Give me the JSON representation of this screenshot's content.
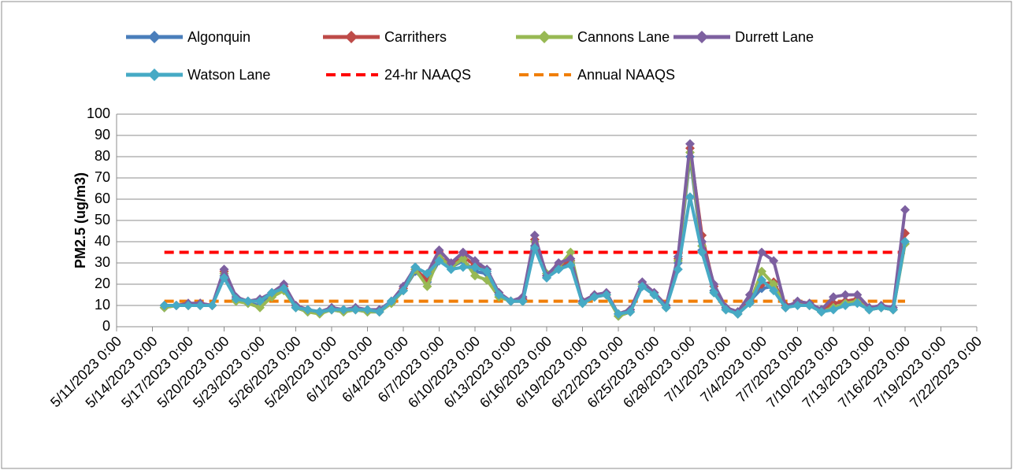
{
  "chart_data": {
    "type": "line",
    "y_label": "PM2.5 (ug/m3)",
    "x": [
      "5/15/2023 0:00",
      "5/16/2023 0:00",
      "5/17/2023 0:00",
      "5/18/2023 0:00",
      "5/19/2023 0:00",
      "5/20/2023 0:00",
      "5/21/2023 0:00",
      "5/22/2023 0:00",
      "5/23/2023 0:00",
      "5/24/2023 0:00",
      "5/25/2023 0:00",
      "5/26/2023 0:00",
      "5/27/2023 0:00",
      "5/28/2023 0:00",
      "5/29/2023 0:00",
      "5/30/2023 0:00",
      "5/31/2023 0:00",
      "6/1/2023 0:00",
      "6/2/2023 0:00",
      "6/3/2023 0:00",
      "6/4/2023 0:00",
      "6/5/2023 0:00",
      "6/6/2023 0:00",
      "6/7/2023 0:00",
      "6/8/2023 0:00",
      "6/9/2023 0:00",
      "6/10/2023 0:00",
      "6/11/2023 0:00",
      "6/12/2023 0:00",
      "6/13/2023 0:00",
      "6/14/2023 0:00",
      "6/15/2023 0:00",
      "6/16/2023 0:00",
      "6/17/2023 0:00",
      "6/18/2023 0:00",
      "6/19/2023 0:00",
      "6/20/2023 0:00",
      "6/21/2023 0:00",
      "6/22/2023 0:00",
      "6/23/2023 0:00",
      "6/24/2023 0:00",
      "6/25/2023 0:00",
      "6/26/2023 0:00",
      "6/27/2023 0:00",
      "6/28/2023 0:00",
      "6/29/2023 0:00",
      "6/30/2023 0:00",
      "7/1/2023 0:00",
      "7/2/2023 0:00",
      "7/3/2023 0:00",
      "7/4/2023 0:00",
      "7/5/2023 0:00",
      "7/6/2023 0:00",
      "7/7/2023 0:00",
      "7/8/2023 0:00",
      "7/9/2023 0:00",
      "7/10/2023 0:00",
      "7/11/2023 0:00",
      "7/12/2023 0:00",
      "7/13/2023 0:00",
      "7/14/2023 0:00",
      "7/15/2023 0:00",
      "7/16/2023 0:00"
    ],
    "series": [
      {
        "name": "Algonquin",
        "color": "#4a7ebb",
        "values": [
          9,
          10,
          10,
          10,
          10,
          24,
          13,
          11,
          10,
          15,
          18,
          9,
          7,
          7,
          8,
          7,
          8,
          7,
          7,
          11,
          17,
          26,
          21,
          31,
          28,
          31,
          26,
          25,
          15,
          12,
          12,
          38,
          23,
          27,
          30,
          11,
          14,
          15,
          5,
          7,
          19,
          15,
          9,
          30,
          80,
          36,
          17,
          8,
          6,
          12,
          18,
          19,
          9,
          11,
          10,
          7,
          9,
          11,
          12,
          8,
          9,
          8,
          40
        ]
      },
      {
        "name": "Carrithers",
        "color": "#be4b48",
        "values": [
          10,
          10,
          10,
          11,
          10,
          26,
          13,
          12,
          12,
          16,
          19,
          10,
          8,
          7,
          8,
          8,
          8,
          8,
          7,
          12,
          18,
          27,
          22,
          33,
          29,
          33,
          29,
          26,
          16,
          12,
          13,
          41,
          24,
          29,
          31,
          12,
          15,
          15,
          6,
          8,
          20,
          16,
          10,
          32,
          84,
          43,
          19,
          9,
          7,
          13,
          20,
          21,
          10,
          11,
          10,
          8,
          11,
          12,
          13,
          9,
          9,
          8,
          44
        ]
      },
      {
        "name": "Cannons Lane",
        "color": "#98b954",
        "values": [
          9,
          10,
          10,
          10,
          10,
          25,
          12,
          11,
          9,
          14,
          17,
          9,
          7,
          6,
          8,
          7,
          8,
          7,
          7,
          11,
          17,
          27,
          19,
          33,
          28,
          32,
          24,
          22,
          14,
          12,
          12,
          40,
          25,
          28,
          35,
          11,
          14,
          15,
          5,
          7,
          20,
          15,
          9,
          31,
          82,
          38,
          16,
          8,
          6,
          11,
          26,
          20,
          9,
          11,
          10,
          7,
          9,
          11,
          12,
          8,
          9,
          8,
          39
        ]
      },
      {
        "name": "Durrett Lane",
        "color": "#7d60a0",
        "values": [
          10,
          10,
          11,
          11,
          10,
          27,
          14,
          12,
          13,
          16,
          20,
          10,
          8,
          7,
          9,
          8,
          9,
          8,
          8,
          12,
          19,
          28,
          25,
          36,
          30,
          35,
          31,
          27,
          16,
          12,
          14,
          43,
          24,
          30,
          32,
          12,
          15,
          16,
          6,
          8,
          21,
          16,
          10,
          33,
          86,
          40,
          20,
          9,
          7,
          15,
          35,
          31,
          9,
          12,
          11,
          8,
          14,
          15,
          15,
          9,
          10,
          9,
          55
        ]
      },
      {
        "name": "Watson Lane",
        "color": "#46aac5",
        "values": [
          10,
          10,
          10,
          10,
          10,
          23,
          13,
          12,
          12,
          16,
          18,
          9,
          8,
          7,
          8,
          8,
          8,
          8,
          7,
          12,
          17,
          28,
          25,
          31,
          27,
          28,
          28,
          26,
          15,
          12,
          12,
          37,
          23,
          27,
          29,
          11,
          14,
          15,
          6,
          7,
          19,
          15,
          9,
          27,
          61,
          35,
          16,
          8,
          6,
          11,
          22,
          17,
          9,
          10,
          10,
          7,
          8,
          10,
          11,
          8,
          9,
          8,
          40
        ]
      }
    ],
    "reference_lines": [
      {
        "name": "24-hr NAAQS",
        "value": 35,
        "color": "#ff0000"
      },
      {
        "name": "Annual NAAQS",
        "value": 12,
        "color": "#f07f09"
      }
    ],
    "xlim": [
      "5/11/2023 0:00",
      "7/22/2023 0:00"
    ],
    "xticks": [
      "5/11/2023 0:00",
      "5/14/2023 0:00",
      "5/17/2023 0:00",
      "5/20/2023 0:00",
      "5/23/2023 0:00",
      "5/26/2023 0:00",
      "5/29/2023 0:00",
      "6/1/2023 0:00",
      "6/4/2023 0:00",
      "6/7/2023 0:00",
      "6/10/2023 0:00",
      "6/13/2023 0:00",
      "6/16/2023 0:00",
      "6/19/2023 0:00",
      "6/22/2023 0:00",
      "6/25/2023 0:00",
      "6/28/2023 0:00",
      "7/1/2023 0:00",
      "7/4/2023 0:00",
      "7/7/2023 0:00",
      "7/10/2023 0:00",
      "7/13/2023 0:00",
      "7/16/2023 0:00",
      "7/19/2023 0:00",
      "7/22/2023 0:00"
    ],
    "ylim": [
      0,
      100
    ],
    "yticks": [
      0,
      10,
      20,
      30,
      40,
      50,
      60,
      70,
      80,
      90,
      100
    ],
    "grid": true
  }
}
